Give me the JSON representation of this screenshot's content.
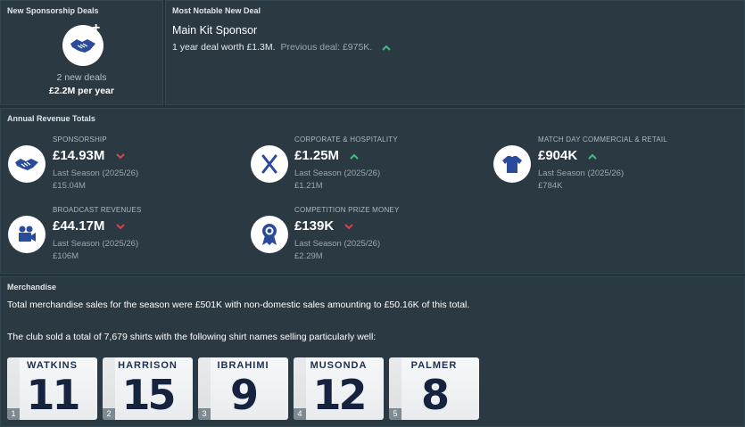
{
  "new_deals": {
    "title": "New Sponsorship Deals",
    "count_text": "2 new deals",
    "amount_text": "£2.2M per year",
    "icon": "handshake-plus-icon"
  },
  "notable_deal": {
    "title": "Most Notable New Deal",
    "name": "Main Kit Sponsor",
    "detail": "1 year deal worth £1.3M.",
    "previous": "Previous deal: £975K.",
    "trend": "up"
  },
  "revenue": {
    "title": "Annual Revenue Totals",
    "items": [
      {
        "label": "SPONSORSHIP",
        "value": "£14.93M",
        "trend": "down",
        "last_label": "Last Season (2025/26)",
        "last_value": "£15.04M",
        "icon": "handshake-icon"
      },
      {
        "label": "CORPORATE & HOSPITALITY",
        "value": "£1.25M",
        "trend": "up",
        "last_label": "Last Season (2025/26)",
        "last_value": "£1.21M",
        "icon": "cutlery-icon"
      },
      {
        "label": "MATCH DAY COMMERCIAL & RETAIL",
        "value": "£904K",
        "trend": "up",
        "last_label": "Last Season (2025/26)",
        "last_value": "£784K",
        "icon": "shirt-icon"
      },
      {
        "label": "BROADCAST REVENUES",
        "value": "£44.17M",
        "trend": "down",
        "last_label": "Last Season (2025/26)",
        "last_value": "£106M",
        "icon": "camera-icon"
      },
      {
        "label": "COMPETITION PRIZE MONEY",
        "value": "£139K",
        "trend": "down",
        "last_label": "Last Season (2025/26)",
        "last_value": "£2.29M",
        "icon": "rosette-icon"
      }
    ]
  },
  "merchandise": {
    "title": "Merchandise",
    "summary": "Total merchandise sales for the season were £501K with non-domestic sales amounting to £50.16K of this total.",
    "shirts_text": "The club sold a total of 7,679 shirts with the following shirt names selling particularly well:",
    "shirts": [
      {
        "rank": "1",
        "name": "WATKINS",
        "number": "11"
      },
      {
        "rank": "2",
        "name": "HARRISON",
        "number": "15"
      },
      {
        "rank": "3",
        "name": "IBRAHIMI",
        "number": "9"
      },
      {
        "rank": "4",
        "name": "MUSONDA",
        "number": "12"
      },
      {
        "rank": "5",
        "name": "PALMER",
        "number": "8"
      }
    ]
  },
  "colors": {
    "up": "#3fbf7f",
    "down": "#d9434b",
    "icon_blue": "#2a4a9a"
  }
}
